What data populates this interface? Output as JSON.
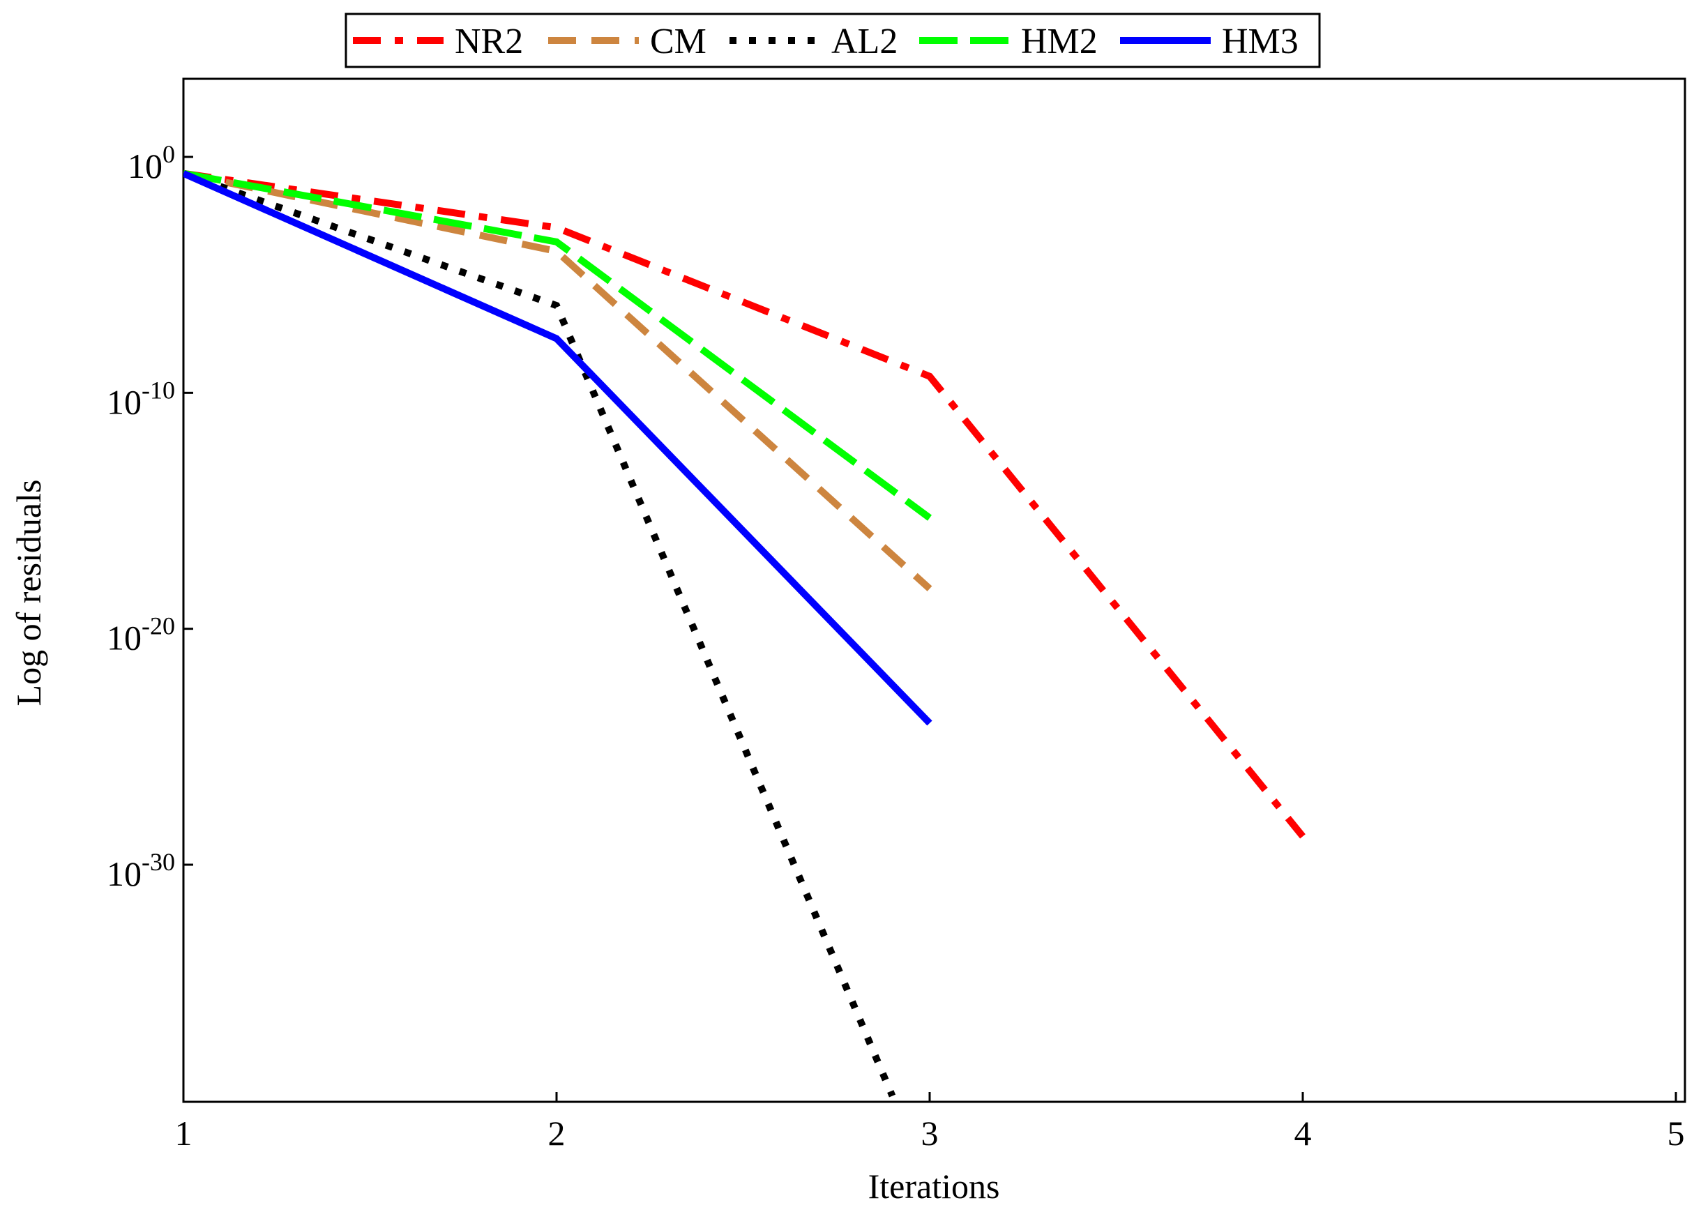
{
  "chart_data": {
    "type": "line",
    "title": "",
    "xlabel": "Iterations",
    "ylabel": "Log of residuals",
    "xlim": [
      1,
      5
    ],
    "ylim_log10": [
      -40,
      4
    ],
    "x_ticks": [
      1,
      2,
      3,
      4,
      5
    ],
    "x_tick_labels": [
      "1",
      "2",
      "3",
      "4",
      "5"
    ],
    "y_ticks_log10": [
      0,
      -10,
      -20,
      -30
    ],
    "y_tick_base": "10",
    "y_tick_exponents": [
      "0",
      "-10",
      "-20",
      "-30"
    ],
    "grid": false,
    "legend_position": "top",
    "series": [
      {
        "name": "NR2",
        "color": "#ff0000",
        "style": "dashdot",
        "x": [
          1,
          2,
          3,
          4
        ],
        "log10_values": [
          -0.7,
          -3,
          -9.3,
          -28.8
        ]
      },
      {
        "name": "CM",
        "color": "#cd853f",
        "style": "dashed",
        "x": [
          1,
          2,
          3
        ],
        "log10_values": [
          -0.7,
          -4,
          -18.3
        ]
      },
      {
        "name": "AL2",
        "color": "#000000",
        "style": "dotted",
        "x": [
          1,
          2,
          2.9
        ],
        "log10_values": [
          -0.7,
          -6.3,
          -39.8
        ]
      },
      {
        "name": "HM2",
        "color": "#00ff00",
        "style": "longdash",
        "x": [
          1,
          2,
          3
        ],
        "log10_values": [
          -0.7,
          -3.6,
          -15.3
        ]
      },
      {
        "name": "HM3",
        "color": "#0000ff",
        "style": "solid",
        "x": [
          1,
          2,
          3
        ],
        "log10_values": [
          -0.7,
          -7.7,
          -24
        ]
      }
    ]
  }
}
